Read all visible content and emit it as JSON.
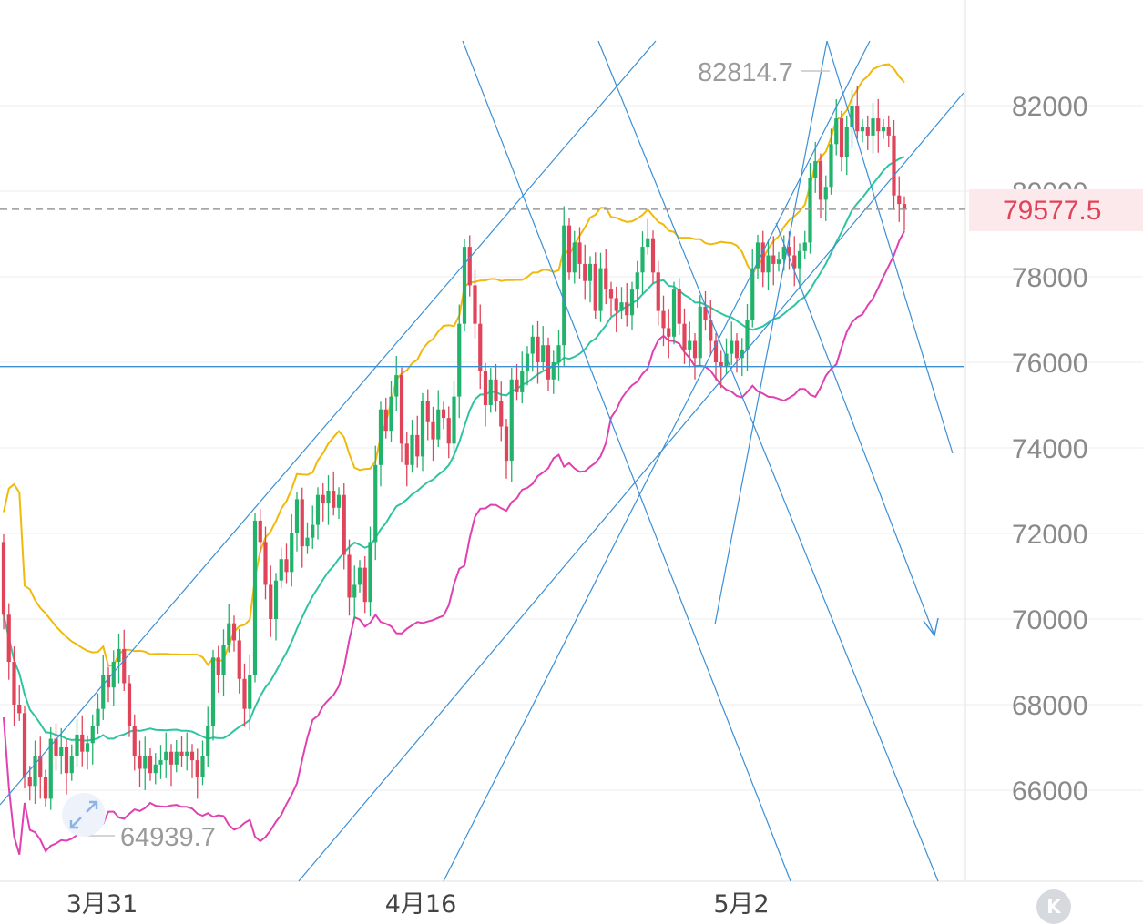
{
  "chart_data": {
    "type": "candlestick",
    "y_ticks": [
      "82000",
      "80000",
      "78000",
      "76000",
      "74000",
      "72000",
      "70000",
      "68000",
      "66000"
    ],
    "ylim": [
      64200,
      83800
    ],
    "x_labels": [
      "3月31",
      "4月16",
      "5月2"
    ],
    "current_price": "79577.5",
    "high_label": "82814.7",
    "low_label": "64939.7",
    "horizontal_level": 75900,
    "colors": {
      "up": "#21b26b",
      "down": "#e0445a",
      "upper_band": "#f0b90b",
      "middle_band": "#2ec4a0",
      "lower_band": "#e040b0",
      "lines": "#3a8fd6"
    },
    "grid": true,
    "candles": [
      [
        71800,
        70100
      ],
      [
        70100,
        69000
      ],
      [
        69000,
        68000
      ],
      [
        68000,
        67800
      ],
      [
        67800,
        66300
      ],
      [
        66300,
        66100
      ],
      [
        66100,
        66800
      ],
      [
        66800,
        66300
      ],
      [
        66300,
        65800
      ],
      [
        65800,
        67200
      ],
      [
        67200,
        66800
      ],
      [
        66800,
        67000
      ],
      [
        67000,
        66400
      ],
      [
        66400,
        66800
      ],
      [
        66800,
        67300
      ],
      [
        67300,
        66900
      ],
      [
        66900,
        67100
      ],
      [
        67100,
        67500
      ],
      [
        67500,
        67900
      ],
      [
        67900,
        68700
      ],
      [
        68700,
        68400
      ],
      [
        68400,
        69000
      ],
      [
        69000,
        69300
      ],
      [
        69300,
        68500
      ],
      [
        68500,
        67500
      ],
      [
        67500,
        66800
      ],
      [
        66800,
        66500
      ],
      [
        66500,
        66800
      ],
      [
        66800,
        66400
      ],
      [
        66400,
        66600
      ],
      [
        66600,
        66700
      ],
      [
        66700,
        66900
      ],
      [
        66900,
        66600
      ],
      [
        66600,
        66900
      ],
      [
        66900,
        66800
      ],
      [
        66800,
        66900
      ],
      [
        66900,
        66700
      ],
      [
        66700,
        66300
      ],
      [
        66300,
        66800
      ],
      [
        66800,
        67500
      ],
      [
        67500,
        69100
      ],
      [
        69100,
        68700
      ],
      [
        68700,
        69400
      ],
      [
        69400,
        69900
      ],
      [
        69900,
        69500
      ],
      [
        69500,
        68600
      ],
      [
        68600,
        67900
      ],
      [
        67900,
        68700
      ],
      [
        68700,
        72300
      ],
      [
        72300,
        71800
      ],
      [
        71800,
        70800
      ],
      [
        70800,
        70000
      ],
      [
        70000,
        70900
      ],
      [
        70900,
        71400
      ],
      [
        71400,
        71100
      ],
      [
        71100,
        72000
      ],
      [
        72000,
        72800
      ],
      [
        72800,
        71700
      ],
      [
        71700,
        71900
      ],
      [
        71900,
        72200
      ],
      [
        72200,
        72900
      ],
      [
        72900,
        72700
      ],
      [
        72700,
        73000
      ],
      [
        73000,
        72600
      ],
      [
        72600,
        72900
      ],
      [
        72900,
        71500
      ],
      [
        71500,
        70500
      ],
      [
        70500,
        70800
      ],
      [
        70800,
        71200
      ],
      [
        71200,
        70400
      ],
      [
        70400,
        71800
      ],
      [
        71800,
        73600
      ],
      [
        73600,
        74900
      ],
      [
        74900,
        74400
      ],
      [
        74400,
        75200
      ],
      [
        75200,
        75700
      ],
      [
        75700,
        74100
      ],
      [
        74100,
        73600
      ],
      [
        73600,
        74300
      ],
      [
        74300,
        73800
      ],
      [
        73800,
        75100
      ],
      [
        75100,
        74600
      ],
      [
        74600,
        74200
      ],
      [
        74200,
        74900
      ],
      [
        74900,
        74700
      ],
      [
        74700,
        74100
      ],
      [
        74100,
        75200
      ],
      [
        75200,
        76900
      ],
      [
        76900,
        78700
      ],
      [
        78700,
        77800
      ],
      [
        77800,
        76900
      ],
      [
        76900,
        75800
      ],
      [
        75800,
        75000
      ],
      [
        75000,
        75600
      ],
      [
        75600,
        75100
      ],
      [
        75100,
        74500
      ],
      [
        74500,
        73700
      ],
      [
        73700,
        75600
      ],
      [
        75600,
        75300
      ],
      [
        75300,
        75800
      ],
      [
        75800,
        76200
      ],
      [
        76200,
        76600
      ],
      [
        76600,
        76000
      ],
      [
        76000,
        76400
      ],
      [
        76400,
        75600
      ],
      [
        75600,
        76000
      ],
      [
        76000,
        76400
      ],
      [
        76400,
        79200
      ],
      [
        79200,
        78100
      ],
      [
        78100,
        78800
      ],
      [
        78800,
        78300
      ],
      [
        78300,
        77900
      ],
      [
        77900,
        78300
      ],
      [
        78300,
        77200
      ],
      [
        77200,
        78200
      ],
      [
        78200,
        77700
      ],
      [
        77700,
        77500
      ],
      [
        77500,
        77200
      ],
      [
        77200,
        77400
      ],
      [
        77400,
        77100
      ],
      [
        77100,
        77700
      ],
      [
        77700,
        78100
      ],
      [
        78100,
        78700
      ],
      [
        78700,
        78900
      ],
      [
        78900,
        78100
      ],
      [
        78100,
        77200
      ],
      [
        77200,
        76800
      ],
      [
        76800,
        76600
      ],
      [
        76600,
        77700
      ],
      [
        77700,
        76900
      ],
      [
        76900,
        76300
      ],
      [
        76300,
        76500
      ],
      [
        76500,
        76100
      ],
      [
        76100,
        77300
      ],
      [
        77300,
        77000
      ],
      [
        77000,
        76500
      ],
      [
        76500,
        76000
      ],
      [
        76000,
        75900
      ],
      [
        75900,
        76200
      ],
      [
        76200,
        76500
      ],
      [
        76500,
        76100
      ],
      [
        76100,
        76300
      ],
      [
        76300,
        77000
      ],
      [
        77000,
        78200
      ],
      [
        78200,
        78800
      ],
      [
        78800,
        78100
      ],
      [
        78100,
        78500
      ],
      [
        78500,
        78300
      ],
      [
        78300,
        78400
      ],
      [
        78400,
        78700
      ],
      [
        78700,
        78500
      ],
      [
        78500,
        78200
      ],
      [
        78200,
        78600
      ],
      [
        78600,
        78800
      ],
      [
        78800,
        80300
      ],
      [
        80300,
        80700
      ],
      [
        80700,
        79800
      ],
      [
        79800,
        80100
      ],
      [
        80100,
        81100
      ],
      [
        81100,
        81700
      ],
      [
        81700,
        80800
      ],
      [
        80800,
        81500
      ],
      [
        81500,
        82000
      ],
      [
        82000,
        81400
      ],
      [
        81400,
        81500
      ],
      [
        81500,
        81300
      ],
      [
        81300,
        81700
      ],
      [
        81700,
        81400
      ],
      [
        81400,
        81500
      ],
      [
        81500,
        81300
      ],
      [
        81300,
        79900
      ],
      [
        79900,
        79700
      ],
      [
        79700,
        79577
      ]
    ]
  },
  "footer": {
    "logo_letter": "K"
  }
}
